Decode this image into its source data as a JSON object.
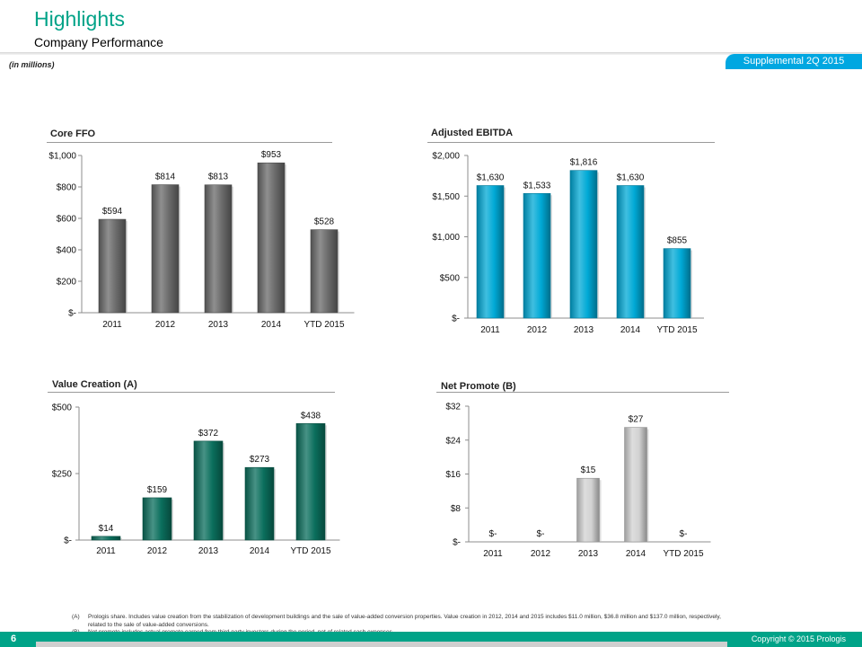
{
  "header": {
    "title": "Highlights",
    "subtitle": "Company Performance",
    "badge": "Supplemental 2Q 2015",
    "units": "(in millions)"
  },
  "colors": {
    "accent": "#00a388",
    "badge": "#00a7e1"
  },
  "chart_data": [
    {
      "type": "bar",
      "title": "Core FFO",
      "categories": [
        "2011",
        "2012",
        "2013",
        "2014",
        "YTD 2015"
      ],
      "values": [
        594,
        814,
        813,
        953,
        528
      ],
      "value_labels": [
        "$594",
        "$814",
        "$813",
        "$953",
        "$528"
      ],
      "yticks": [
        0,
        200,
        400,
        600,
        800,
        1000
      ],
      "ytick_labels": [
        "$-",
        "$200",
        "$400",
        "$600",
        "$800",
        "$1,000"
      ],
      "ylim": [
        0,
        1000
      ],
      "color": "#6a6a6a"
    },
    {
      "type": "bar",
      "title": "Adjusted EBITDA",
      "categories": [
        "2011",
        "2012",
        "2013",
        "2014",
        "YTD 2015"
      ],
      "values": [
        1630,
        1533,
        1816,
        1630,
        855
      ],
      "value_labels": [
        "$1,630",
        "$1,533",
        "$1,816",
        "$1,630",
        "$855"
      ],
      "yticks": [
        0,
        500,
        1000,
        1500,
        2000
      ],
      "ytick_labels": [
        "$-",
        "$500",
        "$1,000",
        "$1,500",
        "$2,000"
      ],
      "ylim": [
        0,
        2000
      ],
      "color": "#00a9d6"
    },
    {
      "type": "bar",
      "title": "Value Creation (A)",
      "categories": [
        "2011",
        "2012",
        "2013",
        "2014",
        "YTD 2015"
      ],
      "values": [
        14,
        159,
        372,
        273,
        438
      ],
      "value_labels": [
        "$14",
        "$159",
        "$372",
        "$273",
        "$438"
      ],
      "yticks": [
        0,
        250,
        500
      ],
      "ytick_labels": [
        "$-",
        "$250",
        "$500"
      ],
      "ylim": [
        0,
        500
      ],
      "color": "#0a6e5c"
    },
    {
      "type": "bar",
      "title": "Net Promote (B)",
      "categories": [
        "2011",
        "2012",
        "2013",
        "2014",
        "YTD 2015"
      ],
      "values": [
        0,
        0,
        15,
        27,
        0
      ],
      "value_labels": [
        "$-",
        "$-",
        "$15",
        "$27",
        "$-"
      ],
      "yticks": [
        0,
        8,
        16,
        24,
        32
      ],
      "ytick_labels": [
        "$-",
        "$8",
        "$16",
        "$24",
        "$32"
      ],
      "ylim": [
        0,
        32
      ],
      "color": "#d2d2d2"
    }
  ],
  "footnotes": [
    {
      "key": "(A)",
      "text": "Prologis share. Includes value creation from the stabilization of development buildings and the sale of value-added conversion properties.  Value creation in 2012, 2014 and 2015 includes $11.0 million, $36.8 million and $137.0 million, respectively, related to the sale of value-added conversions."
    },
    {
      "key": "(B)",
      "text": "Net promote includes actual promote earned from third party investors during the period, net of related cash expenses."
    }
  ],
  "footer": {
    "page_number": "6",
    "copyright": "Copyright © 2015 Prologis"
  }
}
